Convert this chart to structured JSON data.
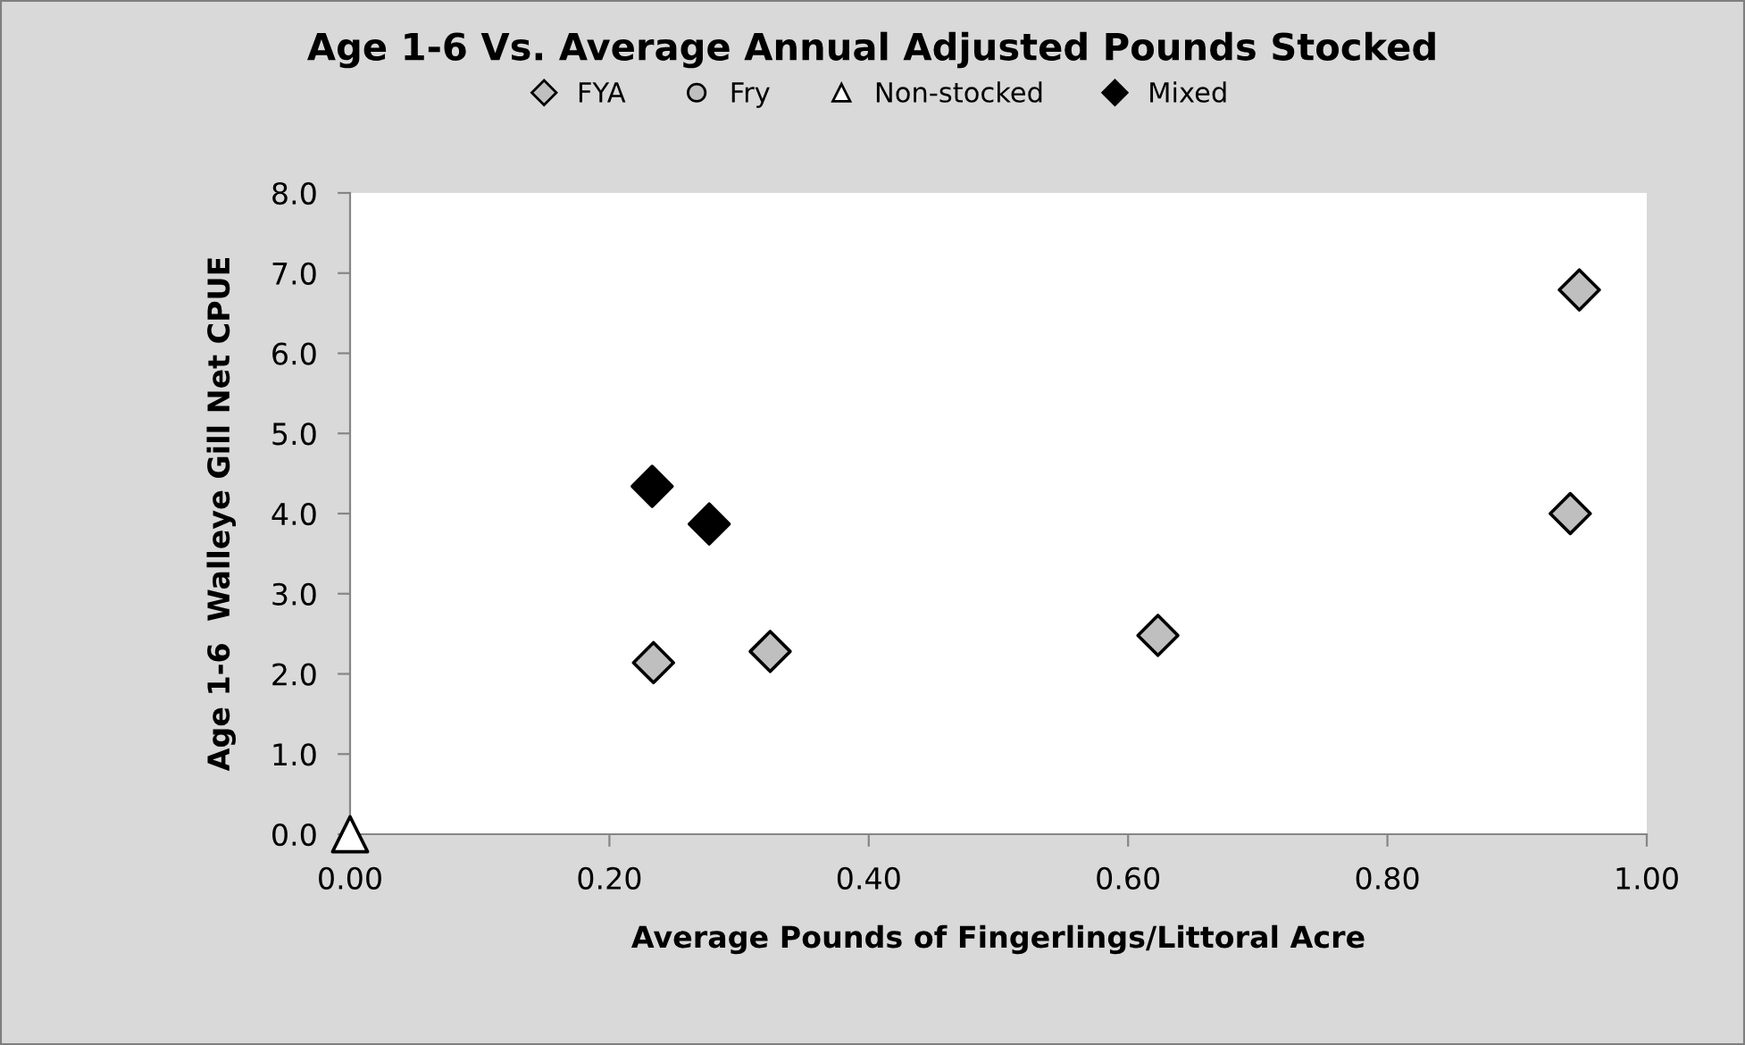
{
  "chart_data": {
    "type": "scatter",
    "title": "Age 1-6 Vs. Average Annual Adjusted Pounds Stocked",
    "xlabel": "Average Pounds of Fingerlings/Littoral Acre",
    "ylabel": "Age 1-6  Walleye Gill Net CPUE",
    "xlim": [
      0,
      1
    ],
    "xticks": [
      {
        "value": 0,
        "label": "0.00"
      },
      {
        "value": 0.2,
        "label": "0.20"
      },
      {
        "value": 0.4,
        "label": "0.40"
      },
      {
        "value": 0.6,
        "label": "0.60"
      },
      {
        "value": 0.8,
        "label": "0.80"
      },
      {
        "value": 1,
        "label": "1.00"
      }
    ],
    "ylim": [
      0,
      8
    ],
    "yticks": [
      {
        "value": 0,
        "label": "0.0"
      },
      {
        "value": 1,
        "label": "1.0"
      },
      {
        "value": 2,
        "label": "2.0"
      },
      {
        "value": 3,
        "label": "3.0"
      },
      {
        "value": 4,
        "label": "4.0"
      },
      {
        "value": 5,
        "label": "5.0"
      },
      {
        "value": 6,
        "label": "6.0"
      },
      {
        "value": 7,
        "label": "7.0"
      },
      {
        "value": 8,
        "label": "8.0"
      }
    ],
    "grid": false,
    "legend": "top",
    "series": [
      {
        "name": "FYA",
        "color": "#bfbfbf",
        "marker": "diamond",
        "x": [
          0.234,
          0.324,
          0.623,
          0.948,
          0.941
        ],
        "values": [
          2.14,
          2.28,
          2.48,
          6.79,
          4.0
        ]
      },
      {
        "name": "Fry",
        "color": "#bfbfbf",
        "marker": "circle"
      },
      {
        "name": "Non-stocked",
        "color": "#ffffff",
        "marker": "triangle",
        "x": [
          0.0
        ],
        "values": [
          0.0
        ]
      },
      {
        "name": "Mixed",
        "color": "#000000",
        "marker": "diamond",
        "x": [
          0.233,
          0.277
        ],
        "values": [
          4.34,
          3.87
        ]
      }
    ]
  }
}
